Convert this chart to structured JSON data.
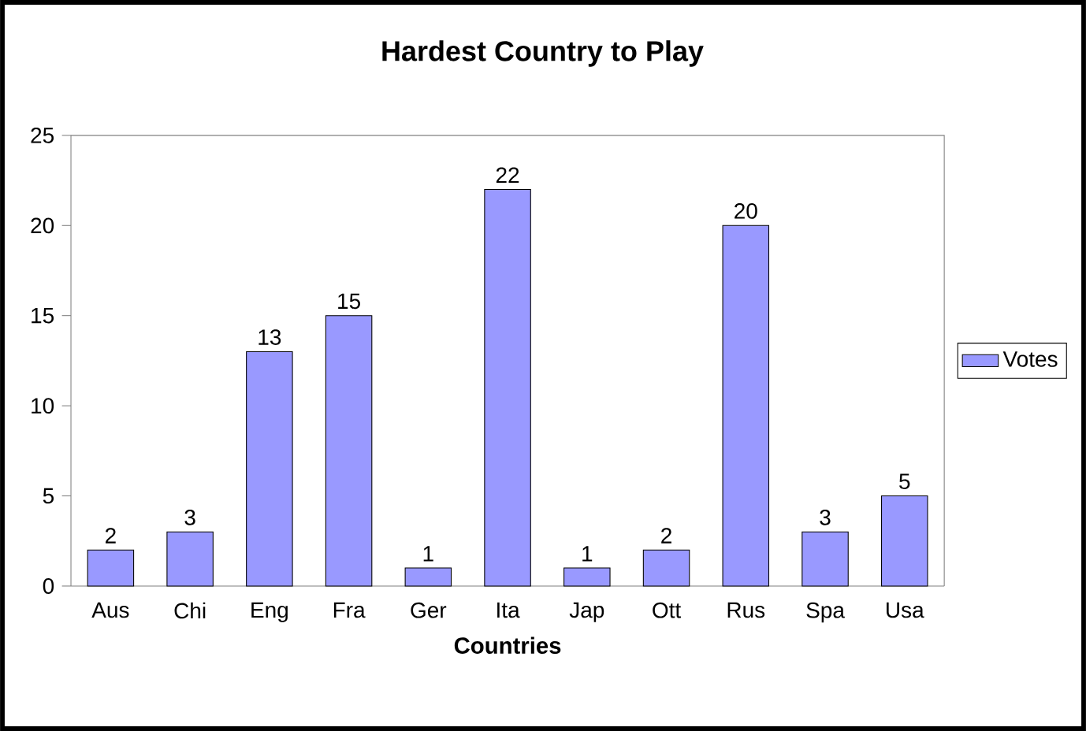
{
  "chart_data": {
    "type": "bar",
    "title": "Hardest Country to Play",
    "xlabel": "Countries",
    "categories": [
      "Aus",
      "Chi",
      "Eng",
      "Fra",
      "Ger",
      "Ita",
      "Jap",
      "Ott",
      "Rus",
      "Spa",
      "Usa"
    ],
    "series": [
      {
        "name": "Votes",
        "color": "#9999ff",
        "values": [
          2,
          3,
          13,
          15,
          1,
          22,
          1,
          2,
          20,
          3,
          5
        ]
      }
    ],
    "ylim": [
      0,
      25
    ],
    "yticks": [
      0,
      5,
      10,
      15,
      20,
      25
    ],
    "data_labels": true,
    "legend": "right"
  }
}
